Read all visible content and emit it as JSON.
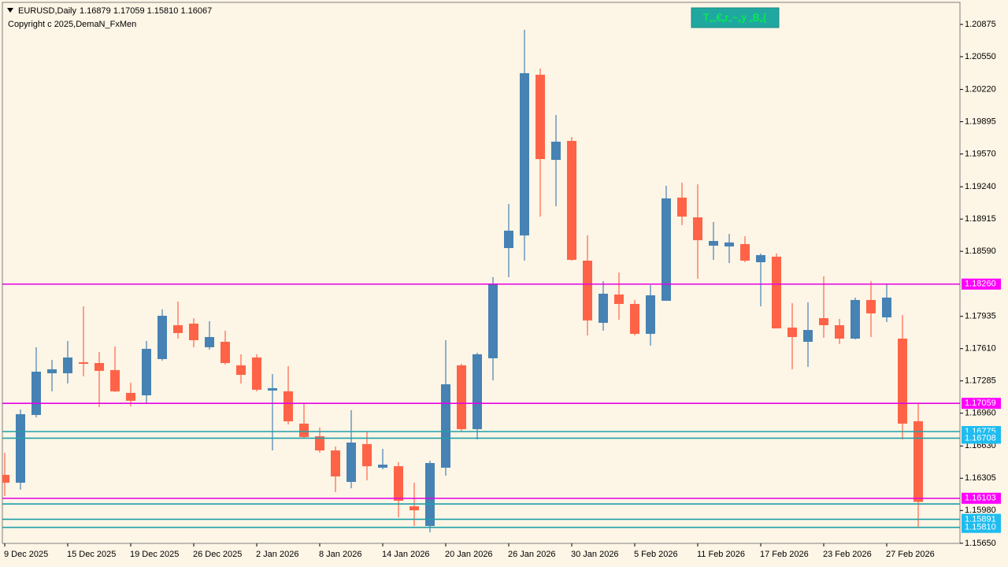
{
  "header": {
    "symbol": "EURUSD,Daily",
    "ohlc": "1.16879 1.17059 1.15810 1.16067",
    "copyright": "Copyright c 2025,DemaN_FxMen",
    "badge": "T„„€„r„~„у „В„{"
  },
  "chart_data": {
    "type": "candlestick",
    "categories": [
      "9 Dec 2025",
      null,
      null,
      null,
      "15 Dec 2025",
      null,
      null,
      null,
      "19 Dec 2025",
      null,
      null,
      null,
      "26 Dec 2025",
      null,
      null,
      null,
      "2 Jan 2026",
      null,
      null,
      null,
      "8 Jan 2026",
      null,
      null,
      null,
      "14 Jan 2026",
      null,
      null,
      null,
      "20 Jan 2026",
      null,
      null,
      null,
      "26 Jan 2026",
      null,
      null,
      null,
      "30 Jan 2026",
      null,
      null,
      null,
      "5 Feb 2026",
      null,
      null,
      null,
      "11 Feb 2026",
      null,
      null,
      null,
      "17 Feb 2026",
      null,
      null,
      null,
      "23 Feb 2026",
      null,
      null,
      null,
      "27 Feb 2026",
      null,
      null
    ],
    "open": [
      1.16339,
      1.1626,
      1.16942,
      1.17362,
      1.17362,
      1.17473,
      1.17465,
      1.17394,
      1.17164,
      1.1714,
      1.17505,
      1.17846,
      1.17862,
      1.17624,
      1.17679,
      1.17442,
      1.17521,
      1.17188,
      1.1718,
      1.16855,
      1.16728,
      1.16585,
      1.16268,
      1.16649,
      1.16411,
      1.16426,
      1.16022,
      1.15824,
      1.16411,
      1.17442,
      1.16799,
      1.17513,
      1.18623,
      1.1875,
      1.20368,
      1.19511,
      1.19702,
      1.18496,
      1.1787,
      1.18155,
      1.1806,
      1.17759,
      1.18092,
      1.19131,
      1.18932,
      1.18647,
      1.18639,
      1.18663,
      1.1848,
      1.18536,
      1.17822,
      1.17679,
      1.17917,
      1.17846,
      1.17711,
      1.181,
      1.17925,
      1.17711,
      1.16879
    ],
    "high": [
      1.16561,
      1.16997,
      1.17624,
      1.17497,
      1.17687,
      1.18036,
      1.17576,
      1.17632,
      1.17267,
      1.17687,
      1.18005,
      1.18084,
      1.17917,
      1.17886,
      1.1779,
      1.17553,
      1.17553,
      1.17354,
      1.17434,
      1.17061,
      1.16815,
      1.16625,
      1.1699,
      1.16775,
      1.16601,
      1.16466,
      1.1626,
      1.16482,
      1.17695,
      1.17457,
      1.17568,
      1.1833,
      1.19067,
      1.2082,
      1.20431,
      1.19963,
      1.19741,
      1.1875,
      1.1829,
      1.18377,
      1.181,
      1.1825,
      1.1925,
      1.19281,
      1.19265,
      1.18885,
      1.18766,
      1.18742,
      1.18568,
      1.18568,
      1.18068,
      1.18076,
      1.18338,
      1.17909,
      1.18124,
      1.1829,
      1.18258,
      1.17949,
      1.17059
    ],
    "low": [
      1.16125,
      1.16189,
      1.16918,
      1.1718,
      1.17259,
      1.17331,
      1.17021,
      1.17172,
      1.17029,
      1.17061,
      1.17489,
      1.17711,
      1.17624,
      1.176,
      1.17449,
      1.17259,
      1.1718,
      1.16585,
      1.16847,
      1.16712,
      1.16561,
      1.16165,
      1.16204,
      1.16284,
      1.16395,
      1.15911,
      1.15824,
      1.1576,
      1.16331,
      1.16775,
      1.16696,
      1.17291,
      1.1833,
      1.18496,
      1.1894,
      1.19043,
      1.18496,
      1.17743,
      1.1779,
      1.17901,
      1.17743,
      1.1764,
      1.18092,
      1.18853,
      1.18314,
      1.18504,
      1.18472,
      1.1848,
      1.18036,
      1.17814,
      1.17402,
      1.17426,
      1.17719,
      1.17656,
      1.17703,
      1.17727,
      1.17878,
      1.16696,
      1.1581
    ],
    "close": [
      1.1626,
      1.1695,
      1.17378,
      1.17402,
      1.17521,
      1.17457,
      1.17386,
      1.1718,
      1.17085,
      1.17608,
      1.17941,
      1.17767,
      1.17695,
      1.17727,
      1.17465,
      1.17346,
      1.17196,
      1.17212,
      1.16878,
      1.1672,
      1.16585,
      1.16323,
      1.16664,
      1.16426,
      1.16442,
      1.16078,
      1.15982,
      1.16458,
      1.17251,
      1.16799,
      1.17553,
      1.18258,
      1.18798,
      1.20384,
      1.19519,
      1.19694,
      1.18504,
      1.17894,
      1.18163,
      1.1806,
      1.17759,
      1.18147,
      1.19123,
      1.1894,
      1.18702,
      1.18694,
      1.18679,
      1.18496,
      1.18552,
      1.17814,
      1.17727,
      1.17798,
      1.17846,
      1.17711,
      1.181,
      1.17965,
      1.18124,
      1.16855,
      1.16067
    ],
    "up_color": "#4682b4",
    "down_color": "#ff6347",
    "ylim": [
      1.15649,
      1.21097
    ],
    "yticks": [
      1.20875,
      {
        "value": 1.2055,
        "label": "1.20550"
      },
      {
        "value": 1.2022,
        "label": "1.20220"
      },
      1.19895,
      {
        "value": 1.1957,
        "label": "1.19570"
      },
      {
        "value": 1.1924,
        "label": "1.19240"
      },
      1.18915,
      {
        "value": 1.1859,
        "label": "1.18590"
      },
      1.17935,
      {
        "value": 1.1761,
        "label": "1.17610"
      },
      1.17285,
      {
        "value": 1.1696,
        "label": "1.16960"
      },
      {
        "value": 1.1663,
        "label": "1.16630"
      },
      1.16305,
      {
        "value": 1.1598,
        "label": "1.15980"
      },
      {
        "value": 1.1565,
        "label": "1.15650"
      }
    ],
    "levels": [
      {
        "value": 1.16046,
        "color": "#20a0a8"
      },
      {
        "value": 1.16775,
        "label": "1.16775",
        "color": "#20a0a8",
        "label_color": "#1ebcf0"
      },
      {
        "value": 1.16708,
        "label": "1.16708",
        "color": "#20a0a8",
        "label_color": "#1ebcf0"
      },
      {
        "value": 1.15891,
        "label": "1.15891",
        "color": "#20a0a8",
        "label_color": "#1ebcf0"
      },
      {
        "value": 1.1581,
        "label": "1.15810",
        "color": "#20a0a8",
        "label_color": "#1ebcf0"
      },
      {
        "value": 1.1826,
        "label": "1.18260",
        "color": "#e600e6",
        "label_color": "#ff00ff"
      },
      {
        "value": 1.17059,
        "label": "1.17059",
        "color": "#e600e6",
        "label_color": "#ff00ff"
      },
      {
        "value": 1.16103,
        "label": "1.16103",
        "color": "#e600e6",
        "label_color": "#ff00ff"
      }
    ]
  }
}
